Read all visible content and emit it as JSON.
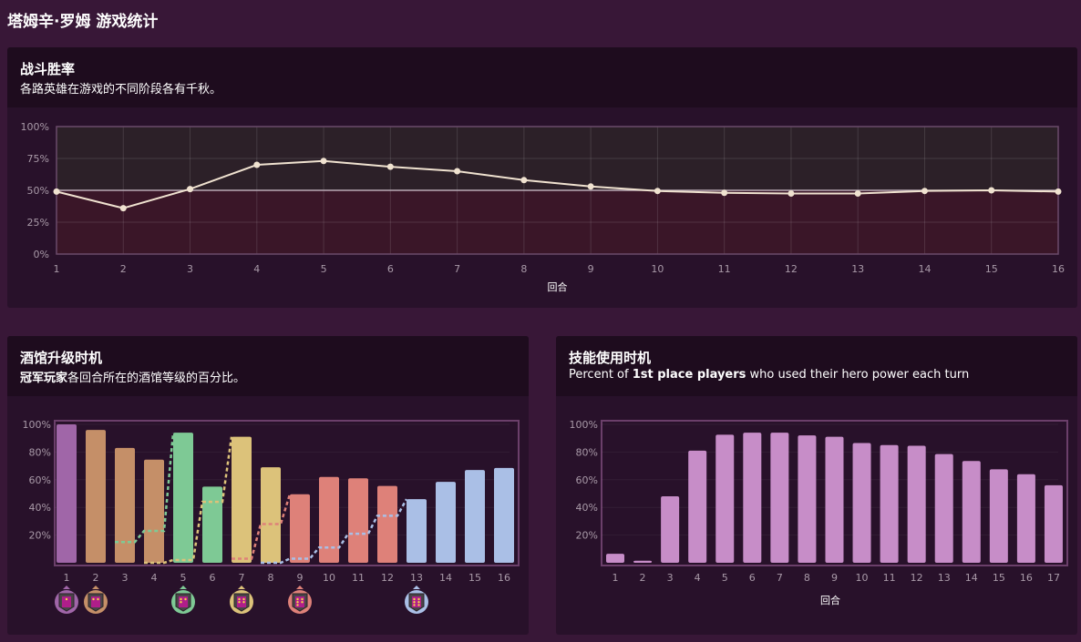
{
  "page_title": "塔姆辛·罗姆 游戏统计",
  "panels": {
    "winrate": {
      "title": "战斗胜率",
      "subtitle": "各路英雄在游戏的不同阶段各有千秋。"
    },
    "tavern": {
      "title": "酒馆升级时机",
      "subtitle_bold": "冠军玩家",
      "subtitle_rest": "各回合所在的酒馆等级的百分比。"
    },
    "heropower": {
      "title": "技能使用时机",
      "subtitle_pre": "Percent of ",
      "subtitle_bold": "1st place players",
      "subtitle_post": " who used their hero power each turn"
    }
  },
  "colors": {
    "line": "#f0e2d0",
    "tier1": "#a066a8",
    "tier2": "#c58f68",
    "tier3": "#7ec995",
    "tier4": "#dcc27a",
    "tier5": "#de8179",
    "tier6": "#aabfe6",
    "heropower": "#c78dc8"
  },
  "chart_data": [
    {
      "type": "line",
      "title": "战斗胜率",
      "xlabel": "回合",
      "ylabel": "",
      "ylim": [
        0,
        100
      ],
      "yticks": [
        "0%",
        "25%",
        "50%",
        "75%",
        "100%"
      ],
      "x": [
        "1",
        "2",
        "3",
        "4",
        "5",
        "6",
        "7",
        "8",
        "9",
        "10",
        "11",
        "12",
        "13",
        "14",
        "15",
        "16"
      ],
      "values": [
        49,
        36,
        51,
        70,
        73,
        68.5,
        65,
        58,
        53,
        49.5,
        48,
        47.5,
        47.5,
        49.5,
        50,
        49
      ],
      "reference_line": 50,
      "grid": true
    },
    {
      "type": "bar",
      "title": "酒馆升级时机",
      "ylim": [
        0,
        100
      ],
      "yticks": [
        "20%",
        "40%",
        "60%",
        "80%",
        "100%"
      ],
      "categories": [
        "1",
        "2",
        "3",
        "4",
        "5",
        "6",
        "7",
        "8",
        "9",
        "10",
        "11",
        "12",
        "13",
        "14",
        "15",
        "16"
      ],
      "values": [
        100,
        96,
        83,
        74.5,
        94,
        55,
        91,
        69,
        49.5,
        62,
        61,
        55.5,
        46,
        58.5,
        67,
        68.5
      ],
      "tiers": [
        1,
        2,
        2,
        2,
        3,
        3,
        4,
        4,
        5,
        5,
        5,
        5,
        6,
        6,
        6,
        6
      ],
      "next_tier_series": [
        {
          "tier": 3,
          "turns": [
            3,
            4
          ],
          "values": [
            15,
            23
          ]
        },
        {
          "tier": 4,
          "turns": [
            4,
            5,
            6
          ],
          "values": [
            0,
            2,
            44
          ]
        },
        {
          "tier": 5,
          "turns": [
            7,
            8
          ],
          "values": [
            3,
            28
          ]
        },
        {
          "tier": 6,
          "turns": [
            8,
            9,
            10,
            11,
            12
          ],
          "values": [
            0,
            3,
            11,
            21,
            34
          ]
        }
      ],
      "tier_icon_turns": [
        1,
        2,
        5,
        7,
        9,
        13
      ]
    },
    {
      "type": "bar",
      "title": "技能使用时机",
      "xlabel": "回合",
      "ylim": [
        0,
        100
      ],
      "yticks": [
        "20%",
        "40%",
        "60%",
        "80%",
        "100%"
      ],
      "categories": [
        "1",
        "2",
        "3",
        "4",
        "5",
        "6",
        "7",
        "8",
        "9",
        "10",
        "11",
        "12",
        "13",
        "14",
        "15",
        "16",
        "17"
      ],
      "values": [
        6.5,
        1.5,
        48,
        81,
        92.5,
        94,
        94,
        92,
        91,
        86.5,
        85,
        84.5,
        78.5,
        73.5,
        67.5,
        64,
        56
      ]
    }
  ]
}
